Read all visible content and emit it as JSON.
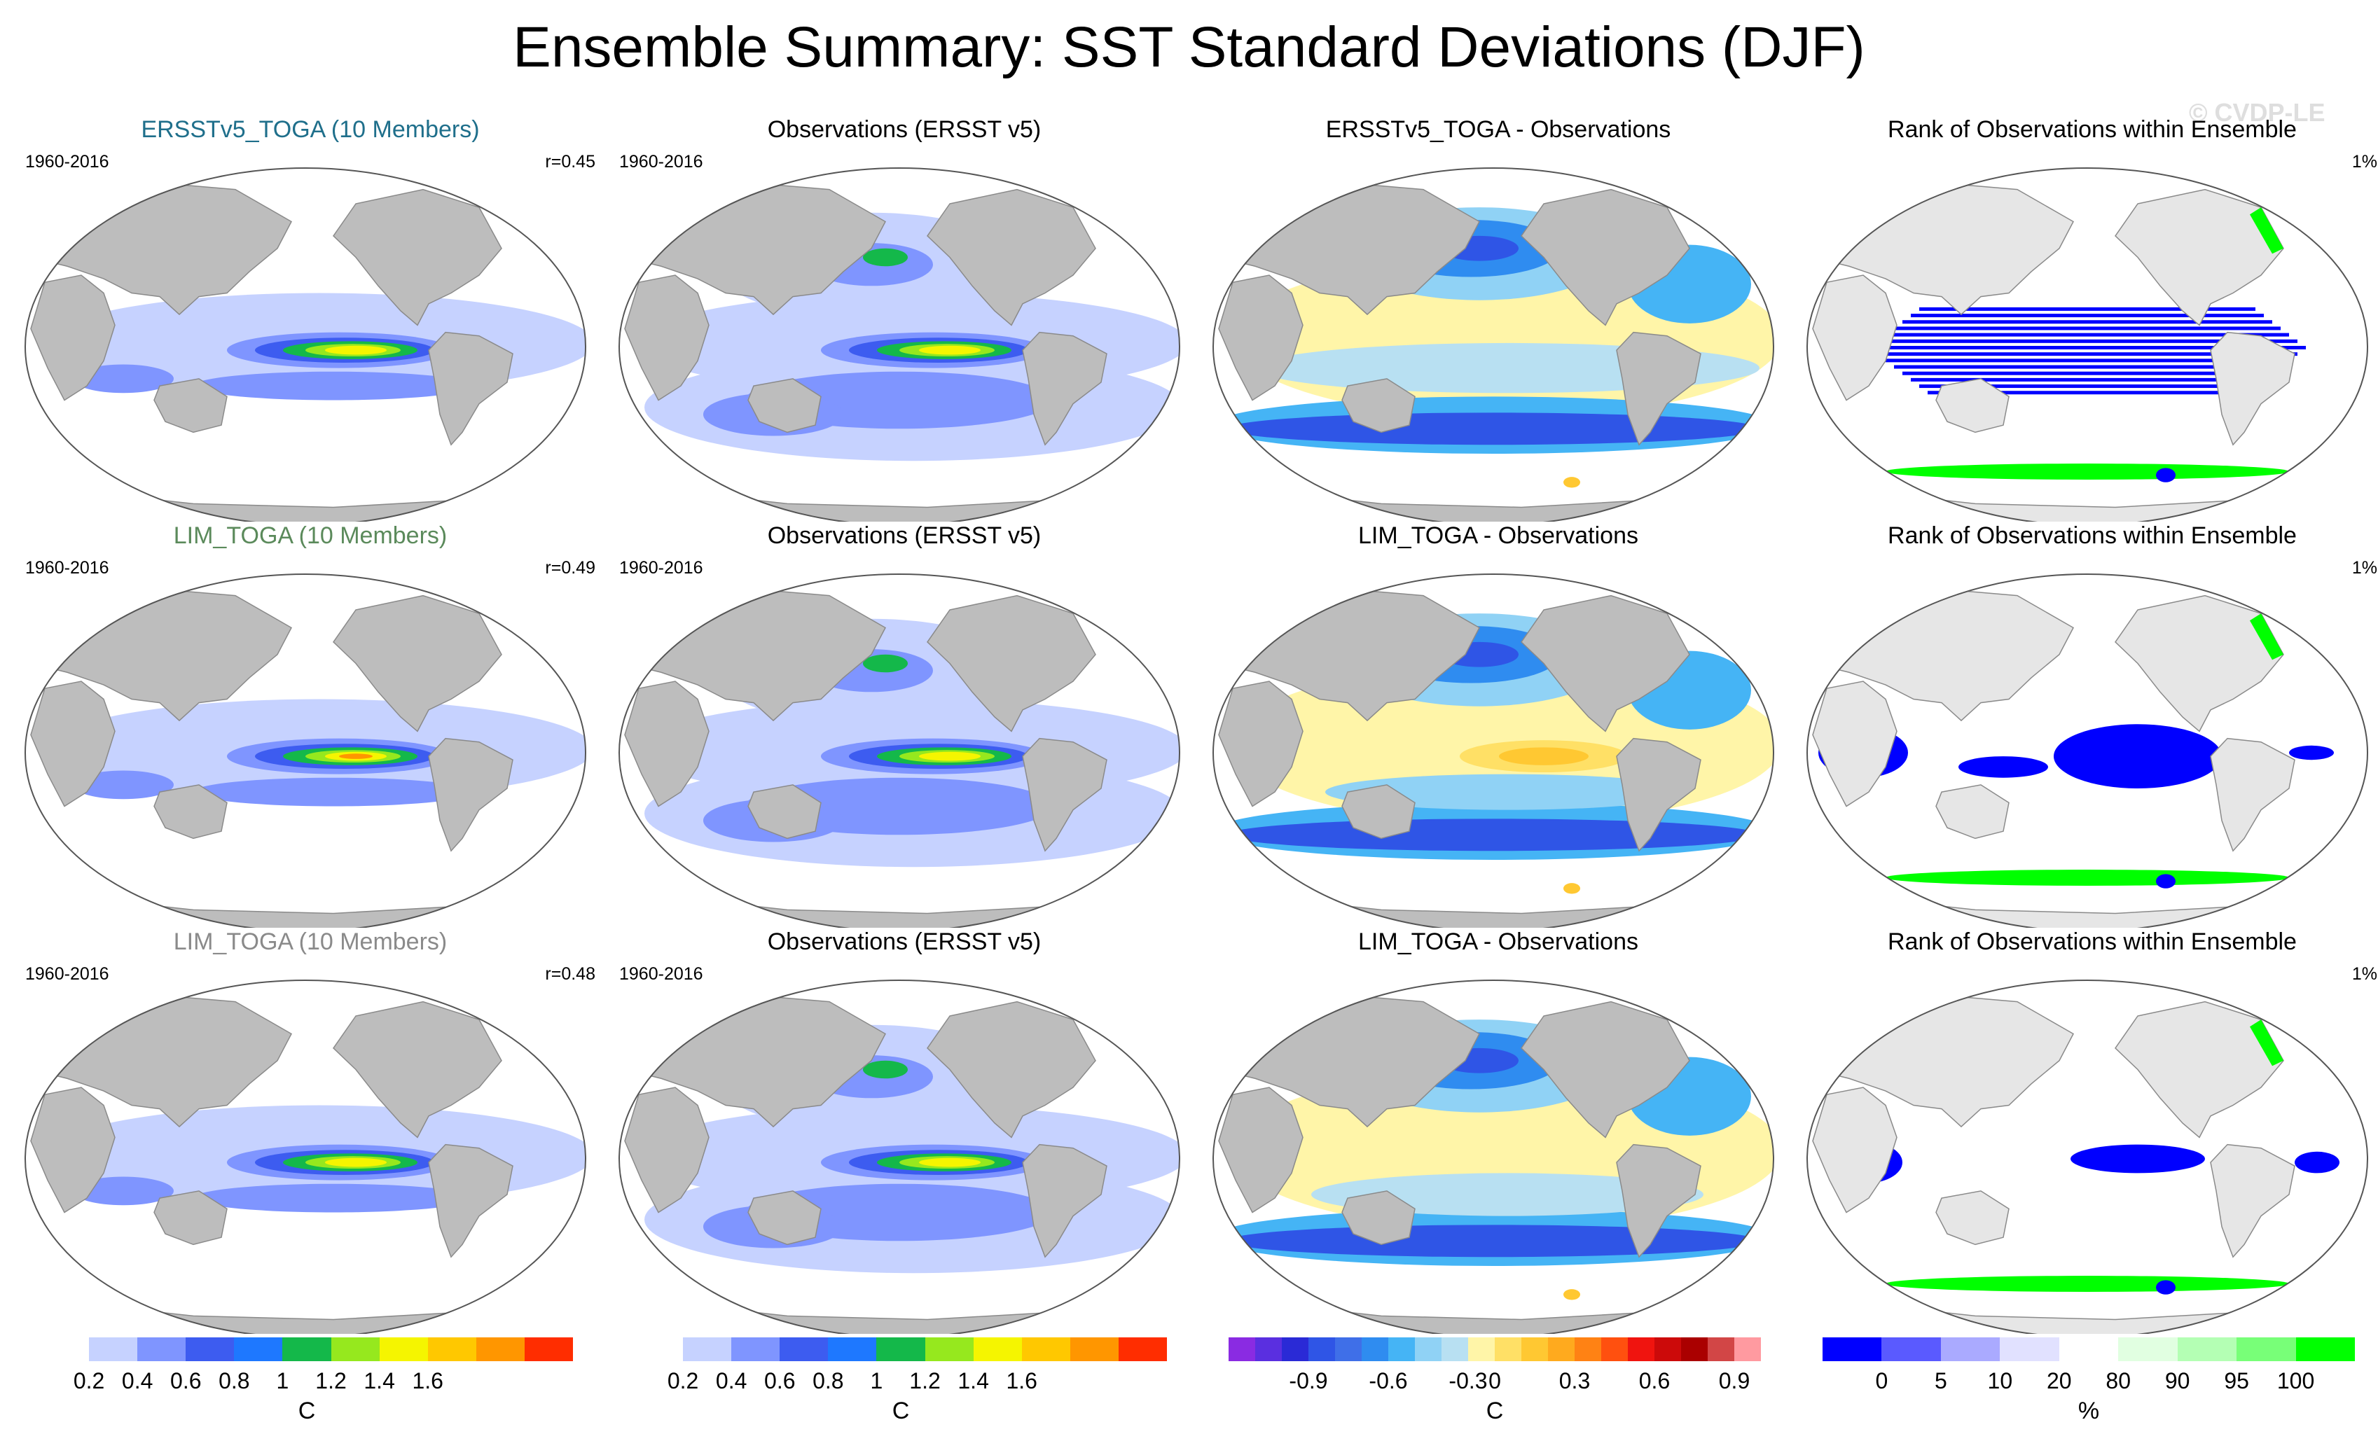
{
  "title": "Ensemble Summary: SST Standard Deviations (DJF)",
  "watermark": "© CVDP-LE",
  "colors": {
    "land": "#bdbdbd",
    "land_edge": "#8a8a8a",
    "ocean_bg": "#ffffff",
    "std_scale": [
      "#ffffff",
      "#c6d2ff",
      "#7f95ff",
      "#3d5cf0",
      "#1e78ff",
      "#14b84a",
      "#96e81e",
      "#f5f500",
      "#ffc800",
      "#ff9600",
      "#ff2d00"
    ],
    "diff_scale": [
      "#8a2be2",
      "#5a2fe0",
      "#2a2ad6",
      "#2f55e6",
      "#3f6fe8",
      "#2f8cf0",
      "#45b4f5",
      "#90d2f5",
      "#b8e0f2",
      "#fff5a8",
      "#ffe066",
      "#ffc832",
      "#ffaa1e",
      "#ff8214",
      "#ff500f",
      "#f0140f",
      "#cc0a0a",
      "#aa0000",
      "#d24646",
      "#ff9aa0"
    ],
    "rank_scale": [
      "#0000ff",
      "#5a5aff",
      "#aaaaff",
      "#e1e1ff",
      "#ffffff",
      "#e1ffe1",
      "#b4ffb4",
      "#78ff78",
      "#00ff00"
    ],
    "rank_land": "#e6e6e6"
  },
  "rows": [
    {
      "model": {
        "title": "ERSSTv5_TOGA (10 Members)",
        "title_color": "#1f6f8b",
        "period": "1960-2016",
        "corr": "r=0.45",
        "pattern": "model1"
      },
      "obs": {
        "title": "Observations (ERSST v5)",
        "period": "1960-2016"
      },
      "diff": {
        "title": "ERSSTv5_TOGA - Observations",
        "pattern": "diff1"
      },
      "rank": {
        "title": "Rank of Observations within Ensemble",
        "pct": "1%",
        "pattern": "rank1"
      }
    },
    {
      "model": {
        "title": "LIM_TOGA (10 Members)",
        "title_color": "#5b8a5b",
        "period": "1960-2016",
        "corr": "r=0.49",
        "pattern": "model2"
      },
      "obs": {
        "title": "Observations (ERSST v5)",
        "period": "1960-2016"
      },
      "diff": {
        "title": "LIM_TOGA - Observations",
        "pattern": "diff2"
      },
      "rank": {
        "title": "Rank of Observations within Ensemble",
        "pct": "1%",
        "pattern": "rank2"
      }
    },
    {
      "model": {
        "title": "LIM_TOGA (10 Members)",
        "title_color": "#8a8a8a",
        "period": "1960-2016",
        "corr": "r=0.48",
        "pattern": "model3"
      },
      "obs": {
        "title": "Observations (ERSST v5)",
        "period": "1960-2016"
      },
      "diff": {
        "title": "LIM_TOGA - Observations",
        "pattern": "diff3"
      },
      "rank": {
        "title": "Rank of Observations within Ensemble",
        "pct": "1%",
        "pattern": "rank3"
      }
    }
  ],
  "colorbars": [
    {
      "scale": "std_scale",
      "unit": "C",
      "ticks": [
        "0.2",
        "0.4",
        "0.6",
        "0.8",
        "1",
        "1.2",
        "1.4",
        "1.6"
      ],
      "tick_slots": [
        1,
        2,
        3,
        4,
        5,
        6,
        7,
        8
      ]
    },
    {
      "scale": "std_scale",
      "unit": "C",
      "ticks": [
        "0.2",
        "0.4",
        "0.6",
        "0.8",
        "1",
        "1.2",
        "1.4",
        "1.6"
      ],
      "tick_slots": [
        1,
        2,
        3,
        4,
        5,
        6,
        7,
        8
      ]
    },
    {
      "scale": "diff_scale",
      "unit": "C",
      "ticks": [
        "-0.9",
        "-0.6",
        "-0.3",
        "0",
        "0.3",
        "0.6",
        "0.9"
      ],
      "tick_slots": [
        3,
        6,
        9,
        10,
        13,
        16,
        19
      ]
    },
    {
      "scale": "rank_scale",
      "unit": "%",
      "ticks": [
        "0",
        "5",
        "10",
        "20",
        "80",
        "90",
        "95",
        "100"
      ],
      "tick_slots": [
        1,
        2,
        3,
        4,
        5,
        6,
        7,
        8
      ]
    }
  ]
}
